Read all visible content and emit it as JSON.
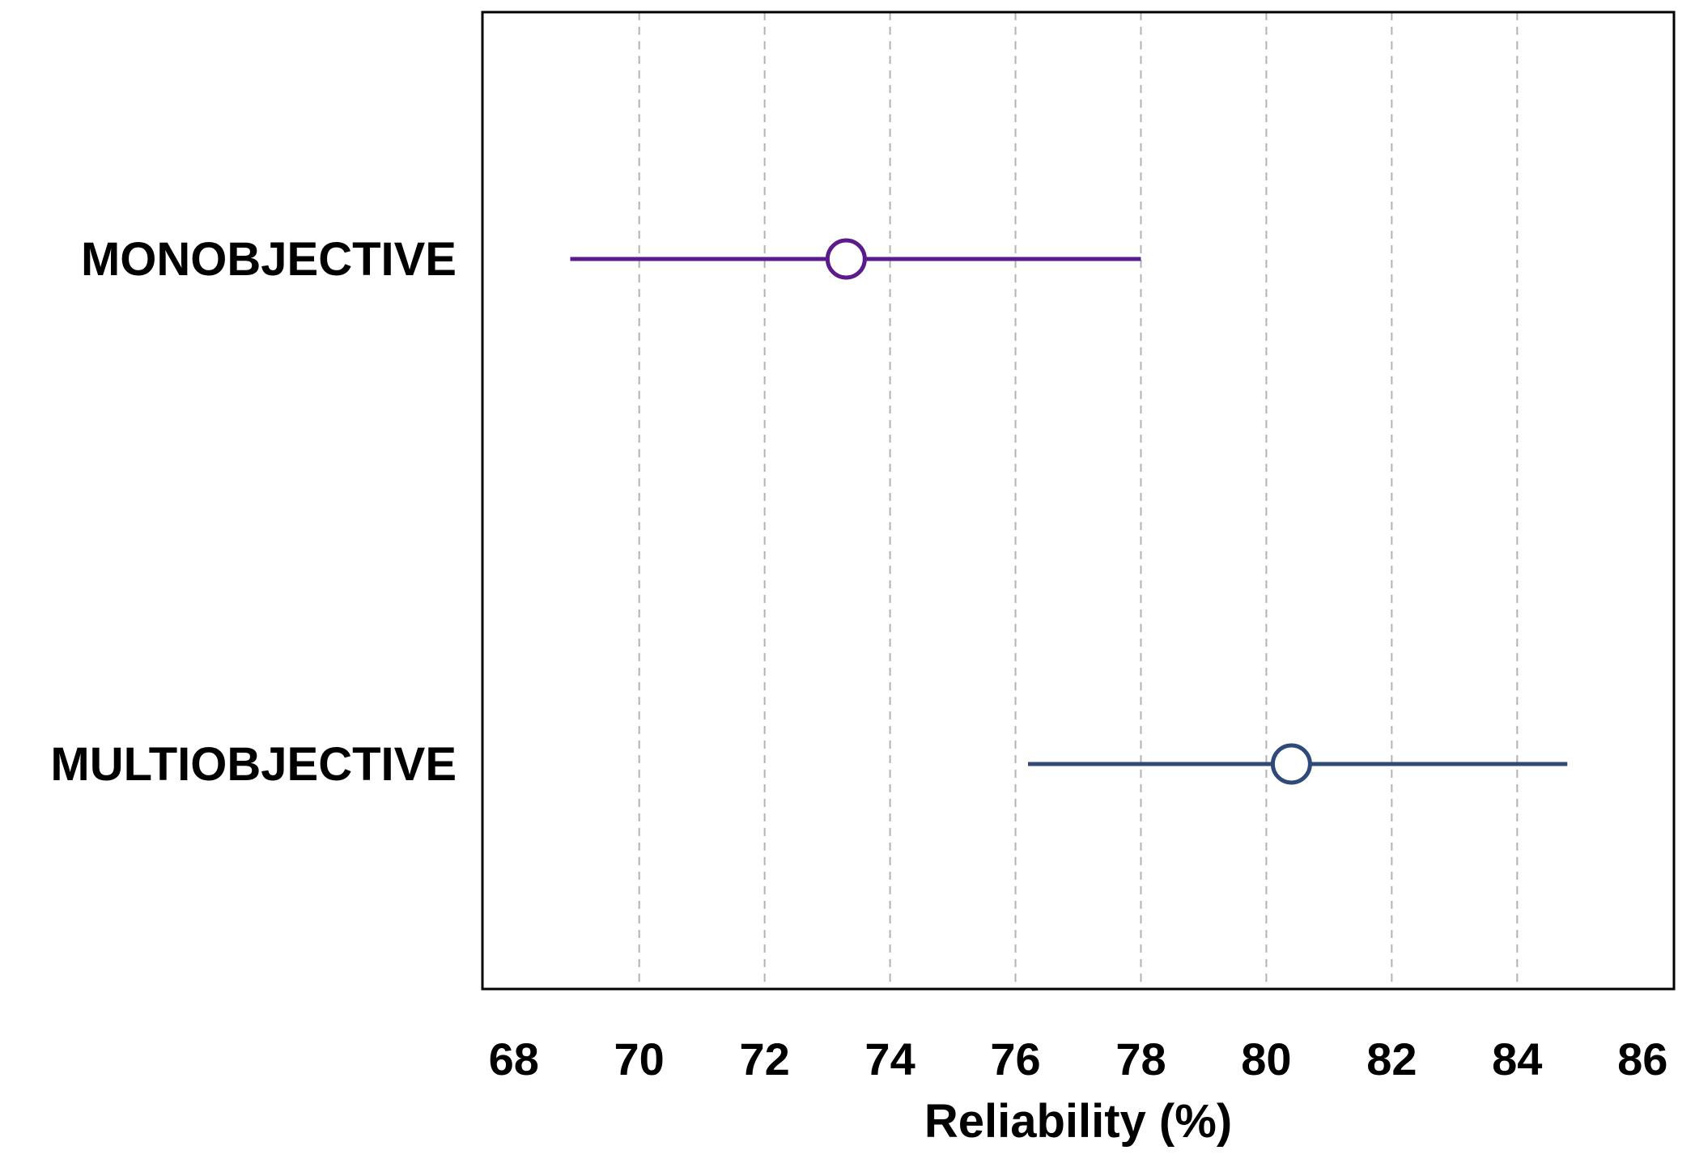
{
  "chart_data": {
    "type": "forest",
    "title": "",
    "xlabel": "Reliability (%)",
    "ylabel": "",
    "xlim": [
      67.5,
      86.5
    ],
    "xticks": [
      68,
      70,
      72,
      74,
      76,
      78,
      80,
      82,
      84,
      86
    ],
    "grid": true,
    "series": [
      {
        "name": "MONOBJECTIVE",
        "estimate": 73.3,
        "lower": 68.9,
        "upper": 78.0,
        "color": "#5b1b8c"
      },
      {
        "name": "MULTIOBJECTIVE",
        "estimate": 80.4,
        "lower": 76.2,
        "upper": 84.8,
        "color": "#2f4a78"
      }
    ]
  }
}
